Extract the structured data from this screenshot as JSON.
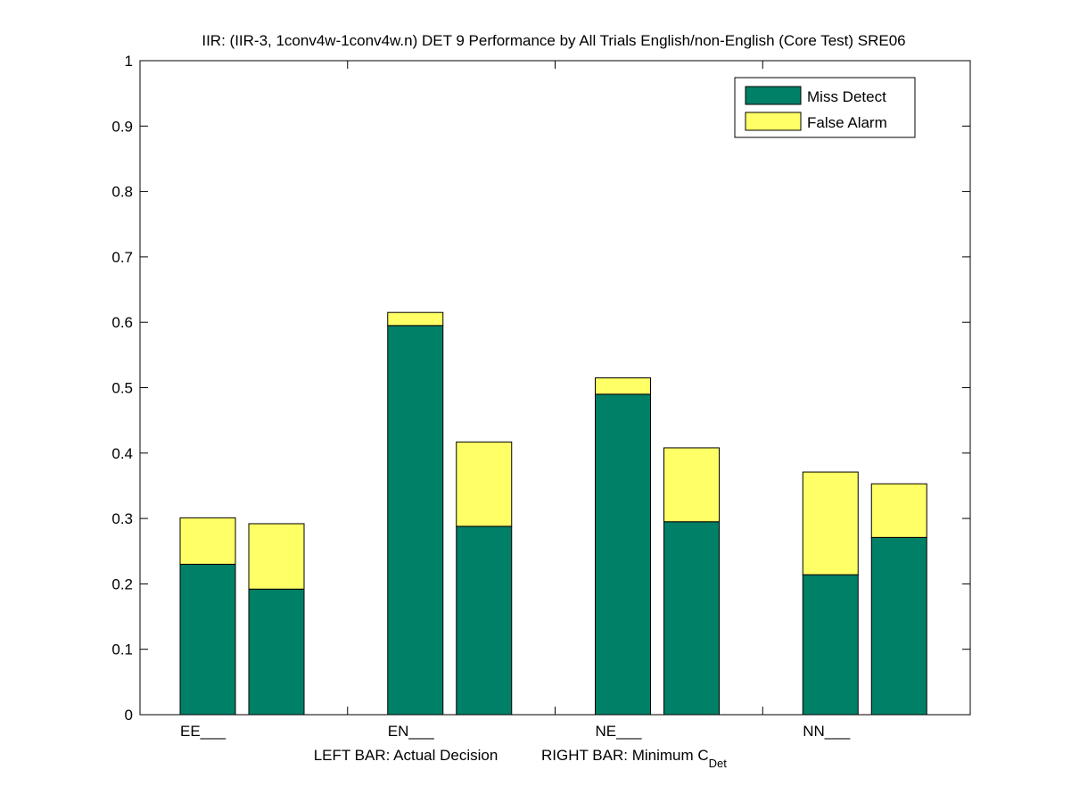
{
  "chart_data": {
    "type": "bar",
    "stacked": true,
    "title": "IIR: (IIR-3, 1conv4w-1conv4w.n) DET 9 Performance by All Trials English/non-English (Core Test) SRE06",
    "xlabel_left": "LEFT BAR: Actual Decision",
    "xlabel_right_main": "RIGHT BAR: Minimum C",
    "xlabel_right_sub": "Det",
    "categories": [
      "EE___",
      "EN___",
      "NE___",
      "NN___"
    ],
    "ylim": [
      0,
      1
    ],
    "yticks": [
      "0",
      "0.1",
      "0.2",
      "0.3",
      "0.4",
      "0.5",
      "0.6",
      "0.7",
      "0.8",
      "0.9",
      "1"
    ],
    "grid": false,
    "legend_position": "top-right",
    "bar_groups": [
      "Actual Decision",
      "Minimum CDet"
    ],
    "series": [
      {
        "name": "Miss Detect",
        "color": "#008066",
        "actual_decision": [
          0.23,
          0.595,
          0.49,
          0.214
        ],
        "minimum_cdet": [
          0.192,
          0.288,
          0.295,
          0.271
        ]
      },
      {
        "name": "False Alarm",
        "color": "#ffff66",
        "actual_decision": [
          0.071,
          0.02,
          0.025,
          0.157
        ],
        "minimum_cdet": [
          0.1,
          0.129,
          0.113,
          0.082
        ]
      }
    ]
  }
}
